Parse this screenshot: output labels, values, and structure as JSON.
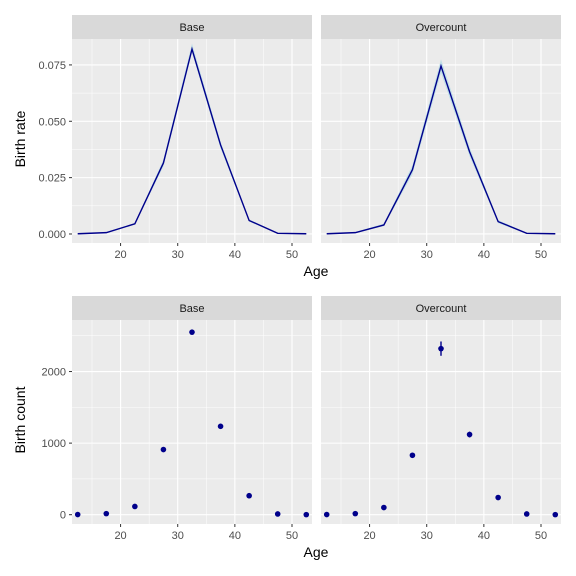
{
  "chart_data": [
    {
      "type": "line",
      "facet": "Base",
      "xlabel": "Age",
      "ylabel": "Birth rate",
      "xlim": [
        11.5,
        53.5
      ],
      "ylim": [
        -0.004,
        0.0865
      ],
      "xticks": [
        20,
        30,
        40,
        50
      ],
      "yticks": [
        0.0,
        0.025,
        0.05,
        0.075
      ],
      "ytick_labels": [
        "0.000",
        "0.025",
        "0.050",
        "0.075"
      ],
      "x": [
        12.5,
        17.5,
        22.5,
        27.5,
        32.5,
        37.5,
        42.5,
        47.5,
        52.5
      ],
      "values": [
        0.0001,
        0.0006,
        0.0045,
        0.0315,
        0.082,
        0.0395,
        0.006,
        0.0003,
        0.0001
      ],
      "lower": [
        0.0,
        0.0004,
        0.0041,
        0.03,
        0.0805,
        0.038,
        0.0055,
        0.0002,
        0.0
      ],
      "upper": [
        0.0002,
        0.0008,
        0.0049,
        0.033,
        0.0845,
        0.041,
        0.0065,
        0.0004,
        0.0002
      ],
      "line_color": "#00008B",
      "band_color": "#ADD8E6"
    },
    {
      "type": "line",
      "facet": "Overcount",
      "xlabel": "Age",
      "ylabel": "Birth rate",
      "xlim": [
        11.5,
        53.5
      ],
      "ylim": [
        -0.004,
        0.0865
      ],
      "xticks": [
        20,
        30,
        40,
        50
      ],
      "yticks": [
        0.0,
        0.025,
        0.05,
        0.075
      ],
      "ytick_labels": [
        "0.000",
        "0.025",
        "0.050",
        "0.075"
      ],
      "x": [
        12.5,
        17.5,
        22.5,
        27.5,
        32.5,
        37.5,
        42.5,
        47.5,
        52.5
      ],
      "values": [
        0.0001,
        0.0006,
        0.004,
        0.0285,
        0.0745,
        0.0365,
        0.0055,
        0.0003,
        0.0001
      ],
      "lower": [
        0.0,
        0.0003,
        0.0035,
        0.0265,
        0.0715,
        0.0345,
        0.0048,
        0.0001,
        0.0
      ],
      "upper": [
        0.0003,
        0.0009,
        0.0046,
        0.0305,
        0.0775,
        0.0385,
        0.0062,
        0.0005,
        0.0002
      ],
      "line_color": "#00008B",
      "band_color": "#ADD8E6"
    },
    {
      "type": "scatter",
      "facet": "Base",
      "xlabel": "Age",
      "ylabel": "Birth count",
      "xlim": [
        11.5,
        53.5
      ],
      "ylim": [
        -130,
        2720
      ],
      "xticks": [
        20,
        30,
        40,
        50
      ],
      "yticks": [
        0,
        1000,
        2000
      ],
      "ytick_labels": [
        "0",
        "1000",
        "2000"
      ],
      "x": [
        12.5,
        17.5,
        22.5,
        27.5,
        32.5,
        37.5,
        42.5,
        47.5,
        52.5
      ],
      "values": [
        2,
        15,
        115,
        910,
        2550,
        1235,
        265,
        10,
        1
      ],
      "lower": [
        2,
        15,
        115,
        910,
        2550,
        1235,
        265,
        10,
        1
      ],
      "upper": [
        2,
        15,
        115,
        910,
        2550,
        1235,
        265,
        10,
        1
      ],
      "point_color": "#00008B"
    },
    {
      "type": "scatter",
      "facet": "Overcount",
      "xlabel": "Age",
      "ylabel": "Birth count",
      "xlim": [
        11.5,
        53.5
      ],
      "ylim": [
        -130,
        2720
      ],
      "xticks": [
        20,
        30,
        40,
        50
      ],
      "yticks": [
        0,
        1000,
        2000
      ],
      "ytick_labels": [
        "0",
        "1000",
        "2000"
      ],
      "x": [
        12.5,
        17.5,
        22.5,
        27.5,
        32.5,
        37.5,
        42.5,
        47.5,
        52.5
      ],
      "values": [
        2,
        15,
        100,
        830,
        2320,
        1120,
        240,
        10,
        1
      ],
      "lower": [
        1,
        12,
        88,
        800,
        2220,
        1080,
        225,
        8,
        0
      ],
      "upper": [
        3,
        18,
        112,
        860,
        2420,
        1160,
        255,
        12,
        2
      ],
      "point_color": "#00008B"
    }
  ],
  "figure": {
    "top_xlabel": "Age",
    "bottom_xlabel": "Age",
    "top_ylabel": "Birth rate",
    "bottom_ylabel": "Birth count",
    "panel_bg": "#EBEBEB",
    "strip_bg": "#D9D9D9",
    "grid_color": "#FFFFFF"
  }
}
